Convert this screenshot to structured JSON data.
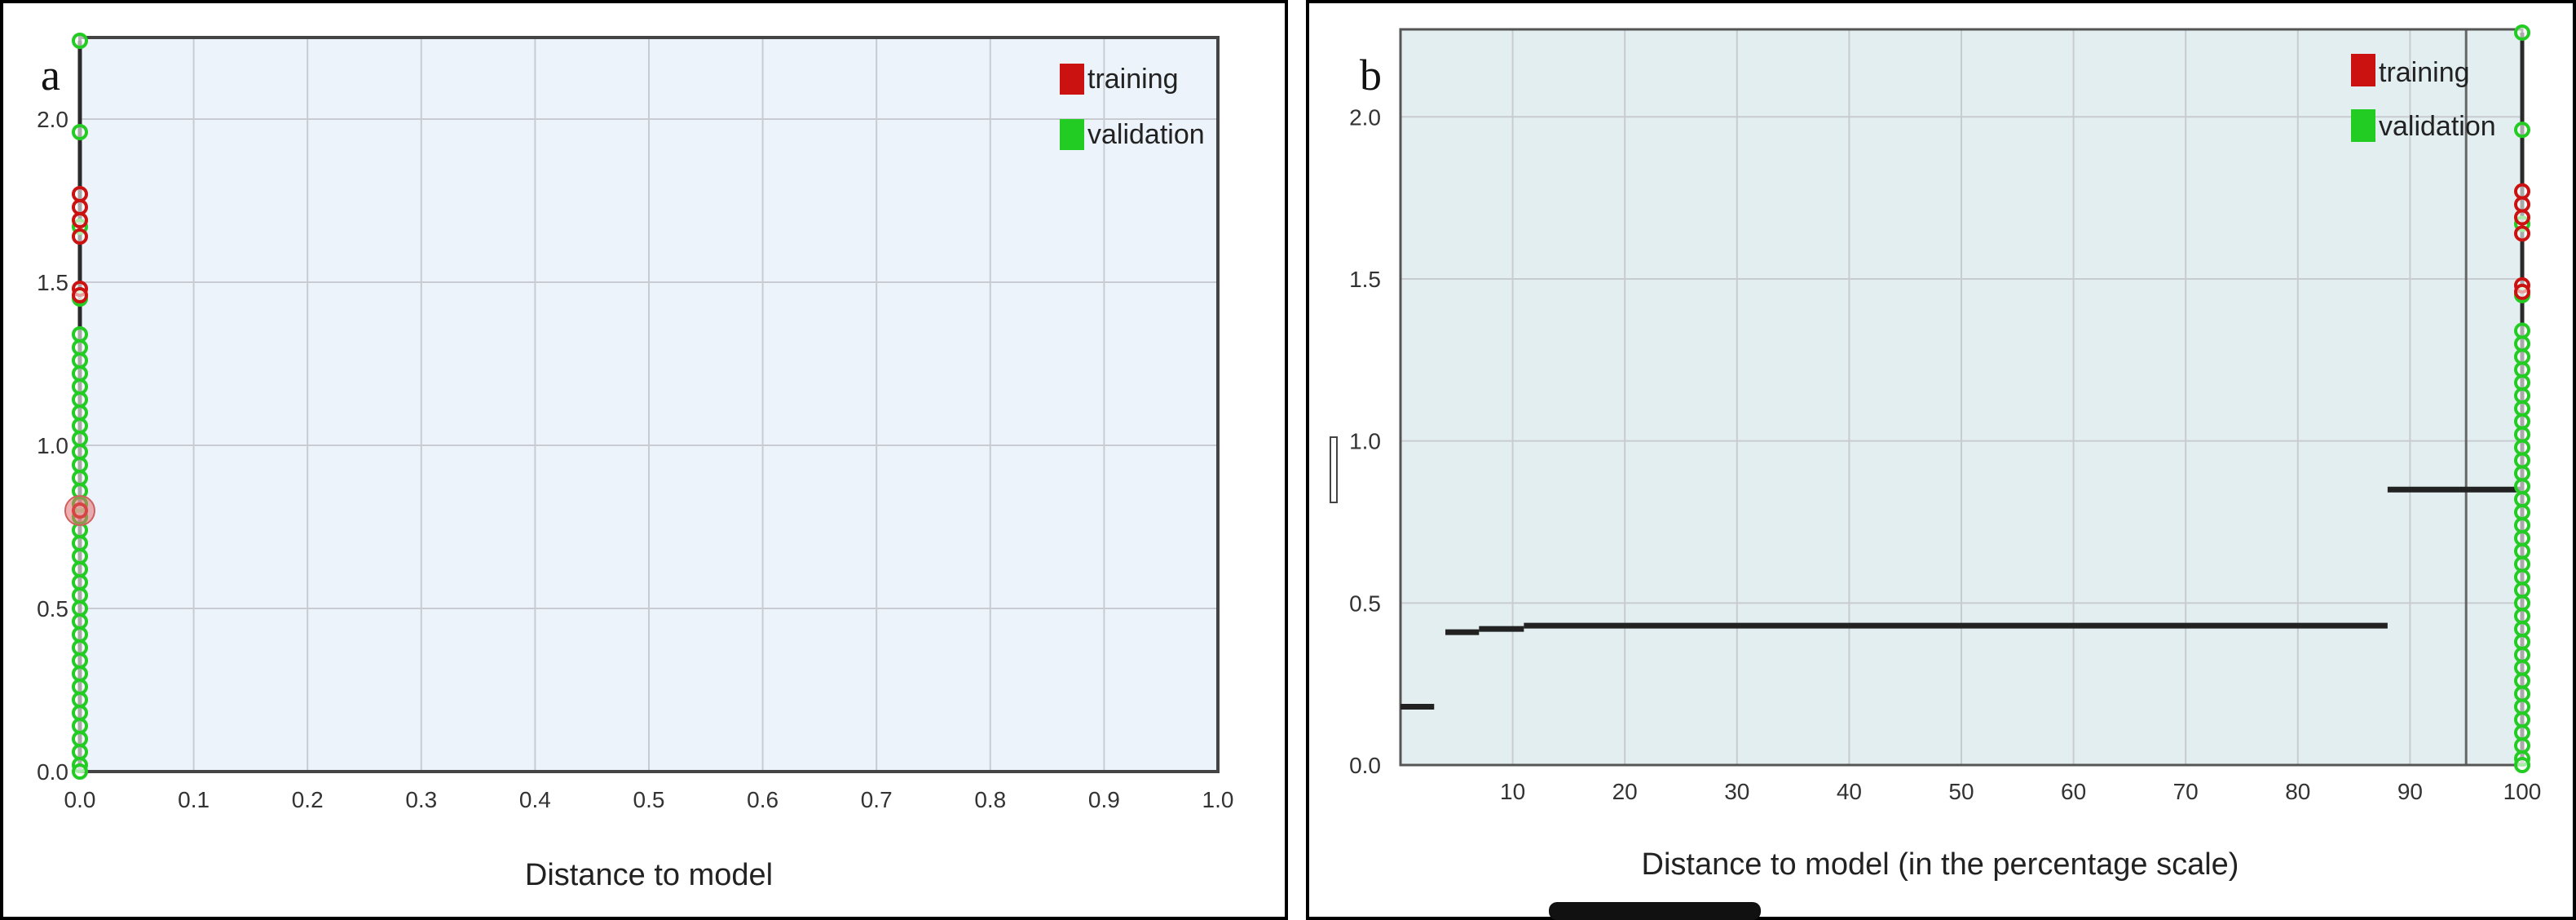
{
  "panels": [
    {
      "panel_label": "a",
      "legend": [
        {
          "label": "training",
          "color": "#cc1111"
        },
        {
          "label": "validation",
          "color": "#22cc22"
        }
      ],
      "chart_data": {
        "type": "scatter",
        "xlabel": "Distance to model",
        "ylabel": "",
        "xlim": [
          0,
          1.0
        ],
        "ylim": [
          0,
          2.25
        ],
        "x_ticks": [
          "0.0",
          "0.1",
          "0.2",
          "0.3",
          "0.4",
          "0.5",
          "0.6",
          "0.7",
          "0.8",
          "0.9",
          "1.0"
        ],
        "y_ticks": [
          "0.0",
          "0.5",
          "1.0",
          "1.5",
          "2.0"
        ],
        "grid": true,
        "legend_position": "top-right",
        "series": [
          {
            "name": "training",
            "color": "#cc1111",
            "points": [
              [
                0,
                1.77
              ],
              [
                0,
                1.73
              ],
              [
                0,
                1.69
              ],
              [
                0,
                1.64
              ],
              [
                0,
                1.48
              ],
              [
                0,
                1.46
              ],
              [
                0,
                0.8
              ]
            ]
          },
          {
            "name": "validation",
            "color": "#22cc22",
            "points": [
              [
                0,
                2.24
              ],
              [
                0,
                1.96
              ],
              [
                0,
                1.67
              ],
              [
                0,
                1.45
              ],
              [
                0,
                1.34
              ],
              [
                0,
                1.3
              ],
              [
                0,
                1.26
              ],
              [
                0,
                1.22
              ],
              [
                0,
                1.18
              ],
              [
                0,
                1.14
              ],
              [
                0,
                1.1
              ],
              [
                0,
                1.06
              ],
              [
                0,
                1.02
              ],
              [
                0,
                0.98
              ],
              [
                0,
                0.94
              ],
              [
                0,
                0.9
              ],
              [
                0,
                0.86
              ],
              [
                0,
                0.82
              ],
              [
                0,
                0.78
              ],
              [
                0,
                0.74
              ],
              [
                0,
                0.7
              ],
              [
                0,
                0.66
              ],
              [
                0,
                0.62
              ],
              [
                0,
                0.58
              ],
              [
                0,
                0.54
              ],
              [
                0,
                0.5
              ],
              [
                0,
                0.46
              ],
              [
                0,
                0.42
              ],
              [
                0,
                0.38
              ],
              [
                0,
                0.34
              ],
              [
                0,
                0.3
              ],
              [
                0,
                0.26
              ],
              [
                0,
                0.22
              ],
              [
                0,
                0.18
              ],
              [
                0,
                0.14
              ],
              [
                0,
                0.1
              ],
              [
                0,
                0.06
              ],
              [
                0,
                0.02
              ],
              [
                0,
                0.0
              ]
            ]
          }
        ],
        "segments": []
      }
    },
    {
      "panel_label": "b",
      "legend": [
        {
          "label": "training",
          "color": "#cc1111"
        },
        {
          "label": "validation",
          "color": "#22cc22"
        }
      ],
      "chart_data": {
        "type": "scatter",
        "xlabel": "Distance to model (in the percentage scale)",
        "ylabel": "",
        "xlim": [
          0,
          100
        ],
        "ylim": [
          0,
          2.27
        ],
        "x_ticks": [
          "10",
          "20",
          "30",
          "40",
          "50",
          "60",
          "70",
          "80",
          "90",
          "100"
        ],
        "y_ticks": [
          "0.0",
          "0.5",
          "1.0",
          "1.5",
          "2.0"
        ],
        "grid": true,
        "legend_position": "top-right",
        "vertical_line_x": 95,
        "series": [
          {
            "name": "training",
            "color": "#cc1111",
            "points": [
              [
                100,
                1.77
              ],
              [
                100,
                1.73
              ],
              [
                100,
                1.69
              ],
              [
                100,
                1.64
              ],
              [
                100,
                1.48
              ],
              [
                100,
                1.46
              ]
            ]
          },
          {
            "name": "validation",
            "color": "#22cc22",
            "points": [
              [
                100,
                2.26
              ],
              [
                100,
                1.96
              ],
              [
                100,
                1.67
              ],
              [
                100,
                1.45
              ],
              [
                100,
                1.34
              ],
              [
                100,
                1.3
              ],
              [
                100,
                1.26
              ],
              [
                100,
                1.22
              ],
              [
                100,
                1.18
              ],
              [
                100,
                1.14
              ],
              [
                100,
                1.1
              ],
              [
                100,
                1.06
              ],
              [
                100,
                1.02
              ],
              [
                100,
                0.98
              ],
              [
                100,
                0.94
              ],
              [
                100,
                0.9
              ],
              [
                100,
                0.86
              ],
              [
                100,
                0.82
              ],
              [
                100,
                0.78
              ],
              [
                100,
                0.74
              ],
              [
                100,
                0.7
              ],
              [
                100,
                0.66
              ],
              [
                100,
                0.62
              ],
              [
                100,
                0.58
              ],
              [
                100,
                0.54
              ],
              [
                100,
                0.5
              ],
              [
                100,
                0.46
              ],
              [
                100,
                0.42
              ],
              [
                100,
                0.38
              ],
              [
                100,
                0.34
              ],
              [
                100,
                0.3
              ],
              [
                100,
                0.26
              ],
              [
                100,
                0.22
              ],
              [
                100,
                0.18
              ],
              [
                100,
                0.14
              ],
              [
                100,
                0.1
              ],
              [
                100,
                0.06
              ],
              [
                100,
                0.02
              ],
              [
                100,
                0.0
              ]
            ]
          }
        ],
        "segments": [
          {
            "x1": 0,
            "x2": 3,
            "y": 0.18
          },
          {
            "x1": 4,
            "x2": 7,
            "y": 0.41
          },
          {
            "x1": 7,
            "x2": 11,
            "y": 0.42
          },
          {
            "x1": 11,
            "x2": 88,
            "y": 0.43
          },
          {
            "x1": 88,
            "x2": 100,
            "y": 0.85
          }
        ]
      }
    }
  ]
}
